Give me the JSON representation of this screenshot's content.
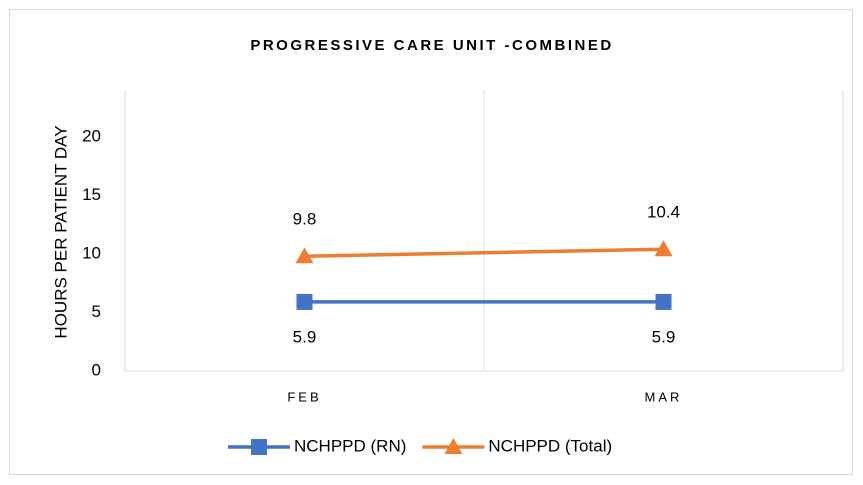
{
  "chart_data": {
    "type": "line",
    "title": "PROGRESSIVE CARE UNIT -COMBINED",
    "y_label": "HOURS PER PATIENT DAY",
    "categories": [
      "FEB",
      "MAR"
    ],
    "series": [
      {
        "name": "NCHPPD (RN)",
        "color": "#4472c4",
        "marker": "square",
        "label_position": "below",
        "values": [
          5.9,
          5.9
        ]
      },
      {
        "name": "NCHPPD (Total)",
        "color": "#ed7d31",
        "marker": "triangle",
        "label_position": "above",
        "values": [
          9.8,
          10.4
        ]
      }
    ],
    "ylim": [
      0,
      24
    ],
    "yticks": [
      0,
      5,
      10,
      15,
      20
    ],
    "legend": "bottom"
  }
}
